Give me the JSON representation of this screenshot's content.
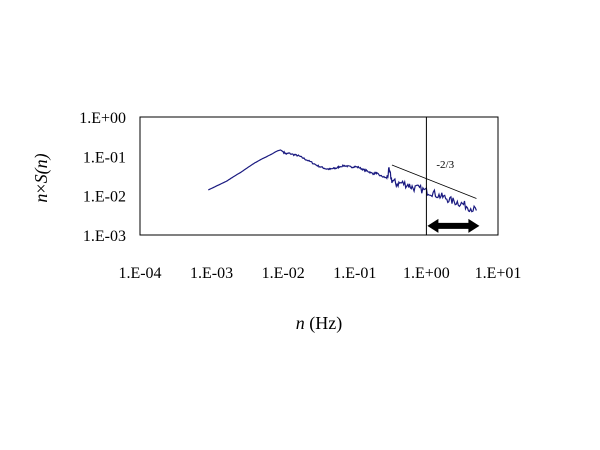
{
  "chart_data": {
    "type": "line",
    "xlabel": {
      "symbol": "n",
      "unit": " (Hz)"
    },
    "ylabel": {
      "n1": "n",
      "times": "×",
      "S": "S",
      "open": "(",
      "n2": "n",
      "close": ")"
    },
    "x_scale": "log",
    "y_scale": "log",
    "xlim": [
      0.0001,
      10
    ],
    "ylim": [
      0.001,
      1
    ],
    "x_ticks": [
      {
        "value": 0.0001,
        "label": "1.E-04"
      },
      {
        "value": 0.001,
        "label": "1.E-03"
      },
      {
        "value": 0.01,
        "label": "1.E-02"
      },
      {
        "value": 0.1,
        "label": "1.E-01"
      },
      {
        "value": 1,
        "label": "1.E+00"
      },
      {
        "value": 10,
        "label": "1.E+01"
      }
    ],
    "y_ticks": [
      {
        "value": 0.001,
        "label": "1.E-03"
      },
      {
        "value": 0.01,
        "label": "1.E-02"
      },
      {
        "value": 0.1,
        "label": "1.E-01"
      },
      {
        "value": 1,
        "label": "1.E+00"
      }
    ],
    "grid": false,
    "legend": "none",
    "series_color": "#1a1a80",
    "series": [
      {
        "x": [
          0.0009,
          0.0012,
          0.0016,
          0.002,
          0.0026,
          0.0032,
          0.004,
          0.005,
          0.006,
          0.007,
          0.0078,
          0.0085,
          0.0092,
          0.01,
          0.011,
          0.012,
          0.014,
          0.016,
          0.018,
          0.021,
          0.025,
          0.03,
          0.035,
          0.04,
          0.045,
          0.05,
          0.055,
          0.06,
          0.07,
          0.08,
          0.09,
          0.1,
          0.115,
          0.13,
          0.145,
          0.16,
          0.18,
          0.2,
          0.22,
          0.25,
          0.28,
          0.3,
          0.33,
          0.38,
          0.45,
          0.55,
          0.65,
          0.8,
          1.0,
          1.2,
          1.5,
          1.8,
          2.2,
          2.7,
          3.3,
          4.0,
          5.0
        ],
        "y": [
          0.014,
          0.018,
          0.023,
          0.03,
          0.04,
          0.052,
          0.068,
          0.085,
          0.1,
          0.115,
          0.13,
          0.14,
          0.145,
          0.13,
          0.115,
          0.12,
          0.11,
          0.105,
          0.095,
          0.082,
          0.07,
          0.058,
          0.052,
          0.048,
          0.047,
          0.049,
          0.05,
          0.054,
          0.058,
          0.056,
          0.053,
          0.055,
          0.052,
          0.046,
          0.043,
          0.04,
          0.036,
          0.038,
          0.033,
          0.03,
          0.028,
          0.042,
          0.025,
          0.02,
          0.021,
          0.019,
          0.016,
          0.015,
          0.013,
          0.012,
          0.01,
          0.009,
          0.0075,
          0.0068,
          0.006,
          0.005,
          0.0042
        ],
        "noise_band": {
          "from_x": 0.28,
          "to_x": 5.0,
          "amplitude_decades": 0.1
        }
      }
    ],
    "annotations": {
      "slope_label": "-2/3",
      "slope_line": {
        "x": [
          0.33,
          5.0
        ],
        "y": [
          0.06,
          0.0085
        ]
      },
      "vertical_marker_x": 1.0,
      "range_arrow": {
        "x": [
          1.0,
          5.5
        ],
        "y": 0.0017
      }
    }
  }
}
